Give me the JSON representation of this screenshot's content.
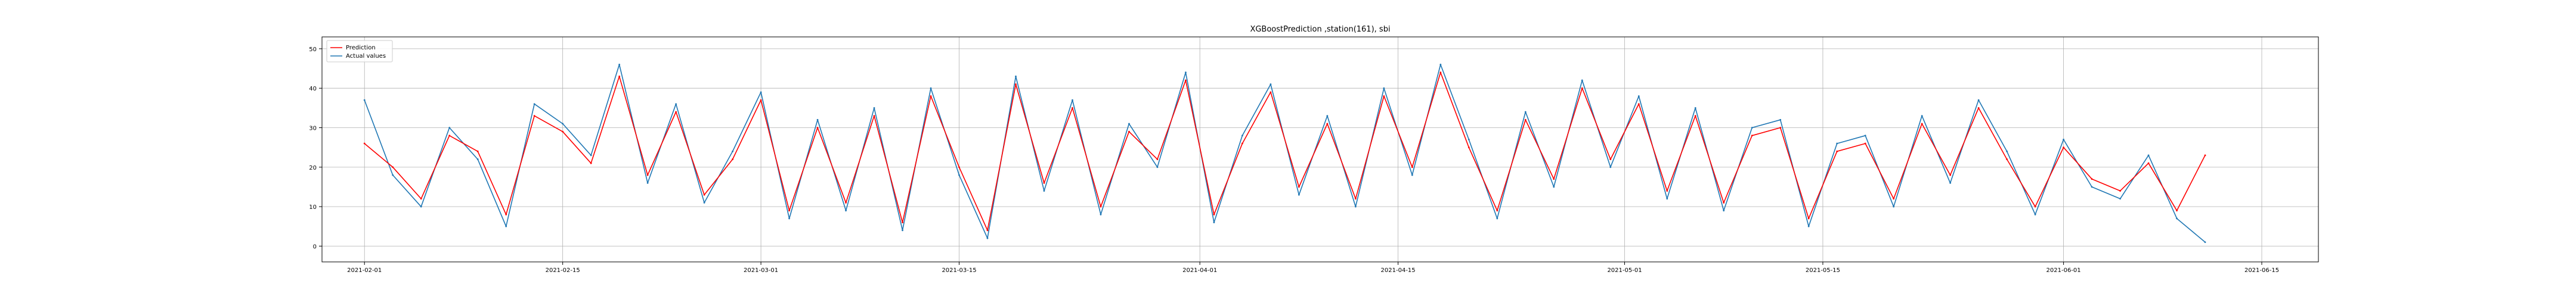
{
  "chart_data": {
    "type": "line",
    "title": "XGBoostPrediction ,station(161), sbi",
    "xlabel": "",
    "ylabel": "",
    "x_axis_type": "date",
    "xlim": [
      "2021-01-29",
      "2021-06-19"
    ],
    "ylim": [
      -4,
      53
    ],
    "grid": true,
    "legend_position": "top-left",
    "x_ticks": [
      "2021-02-01",
      "2021-02-15",
      "2021-03-01",
      "2021-03-15",
      "2021-04-01",
      "2021-04-15",
      "2021-05-01",
      "2021-05-15",
      "2021-06-01",
      "2021-06-15"
    ],
    "y_ticks": [
      0,
      10,
      20,
      30,
      40,
      50
    ],
    "x": [
      "2021-02-01",
      "2021-02-03",
      "2021-02-05",
      "2021-02-07",
      "2021-02-09",
      "2021-02-11",
      "2021-02-13",
      "2021-02-15",
      "2021-02-17",
      "2021-02-19",
      "2021-02-21",
      "2021-02-23",
      "2021-02-25",
      "2021-02-27",
      "2021-03-01",
      "2021-03-03",
      "2021-03-05",
      "2021-03-07",
      "2021-03-09",
      "2021-03-11",
      "2021-03-13",
      "2021-03-15",
      "2021-03-17",
      "2021-03-19",
      "2021-03-21",
      "2021-03-23",
      "2021-03-25",
      "2021-03-27",
      "2021-03-29",
      "2021-03-31",
      "2021-04-02",
      "2021-04-04",
      "2021-04-06",
      "2021-04-08",
      "2021-04-10",
      "2021-04-12",
      "2021-04-14",
      "2021-04-16",
      "2021-04-18",
      "2021-04-20",
      "2021-04-22",
      "2021-04-24",
      "2021-04-26",
      "2021-04-28",
      "2021-04-30",
      "2021-05-02",
      "2021-05-04",
      "2021-05-06",
      "2021-05-08",
      "2021-05-10",
      "2021-05-12",
      "2021-05-14",
      "2021-05-16",
      "2021-05-18",
      "2021-05-20",
      "2021-05-22",
      "2021-05-24",
      "2021-05-26",
      "2021-05-28",
      "2021-05-30",
      "2021-06-01",
      "2021-06-03",
      "2021-06-05",
      "2021-06-07",
      "2021-06-09",
      "2021-06-11"
    ],
    "series": [
      {
        "name": "Prediction",
        "color": "#ff0000",
        "values": [
          26,
          20,
          12,
          28,
          24,
          8,
          33,
          29,
          21,
          43,
          18,
          34,
          13,
          22,
          37,
          9,
          30,
          11,
          33,
          6,
          38,
          20,
          4,
          41,
          16,
          35,
          10,
          29,
          22,
          42,
          8,
          26,
          39,
          15,
          31,
          12,
          38,
          20,
          44,
          25,
          9,
          32,
          17,
          40,
          22,
          36,
          14,
          33,
          11,
          28,
          30,
          7,
          24,
          26,
          12,
          31,
          18,
          35,
          22,
          10,
          25,
          17,
          14,
          21,
          9,
          23
        ]
      },
      {
        "name": "Actual values",
        "color": "#1f77b4",
        "values": [
          37,
          18,
          10,
          30,
          22,
          5,
          36,
          31,
          23,
          46,
          16,
          36,
          11,
          24,
          39,
          7,
          32,
          9,
          35,
          4,
          40,
          18,
          2,
          43,
          14,
          37,
          8,
          31,
          20,
          44,
          6,
          28,
          41,
          13,
          33,
          10,
          40,
          18,
          46,
          27,
          7,
          34,
          15,
          42,
          20,
          38,
          12,
          35,
          9,
          30,
          32,
          5,
          26,
          28,
          10,
          33,
          16,
          37,
          24,
          8,
          27,
          15,
          12,
          23,
          7,
          1
        ]
      }
    ]
  }
}
